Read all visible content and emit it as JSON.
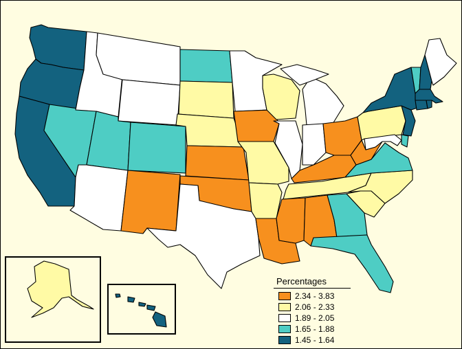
{
  "legend": {
    "title": "Percentages",
    "items": [
      {
        "label": "2.34 - 3.83",
        "color": "#f7901e"
      },
      {
        "label": "2.06 - 2.33",
        "color": "#fffaa5"
      },
      {
        "label": "1.89 - 2.05",
        "color": "#ffffff"
      },
      {
        "label": "1.65 - 1.88",
        "color": "#4ecdc4"
      },
      {
        "label": "1.45 - 1.64",
        "color": "#13627f"
      }
    ]
  },
  "colors": {
    "background": "#fffde1",
    "border": "#000000"
  },
  "states": {
    "WA": "1.45 - 1.64",
    "OR": "1.45 - 1.64",
    "CA": "1.45 - 1.64",
    "NV": "1.65 - 1.88",
    "ID": "1.89 - 2.05",
    "MT": "1.89 - 2.05",
    "WY": "1.89 - 2.05",
    "UT": "1.65 - 1.88",
    "AZ": "1.89 - 2.05",
    "CO": "1.65 - 1.88",
    "NM": "2.34 - 3.83",
    "ND": "1.65 - 1.88",
    "SD": "2.06 - 2.33",
    "NE": "2.06 - 2.33",
    "KS": "2.34 - 3.83",
    "OK": "2.34 - 3.83",
    "TX": "1.89 - 2.05",
    "MN": "1.89 - 2.05",
    "IA": "2.34 - 3.83",
    "MO": "2.06 - 2.33",
    "AR": "2.06 - 2.33",
    "LA": "2.34 - 3.83",
    "WI": "2.06 - 2.33",
    "IL": "1.89 - 2.05",
    "MI": "1.89 - 2.05",
    "IN": "1.89 - 2.05",
    "OH": "2.34 - 3.83",
    "KY": "2.34 - 3.83",
    "TN": "2.06 - 2.33",
    "MS": "2.34 - 3.83",
    "AL": "2.34 - 3.83",
    "GA": "1.65 - 1.88",
    "FL": "1.65 - 1.88",
    "SC": "2.06 - 2.33",
    "NC": "2.06 - 2.33",
    "VA": "1.65 - 1.88",
    "WV": "2.34 - 3.83",
    "PA": "2.06 - 2.33",
    "NY": "1.45 - 1.64",
    "VT": "1.65 - 1.88",
    "NH": "1.45 - 1.64",
    "ME": "1.89 - 2.05",
    "MA": "1.45 - 1.64",
    "CT": "1.45 - 1.64",
    "RI": "1.45 - 1.64",
    "NJ": "1.45 - 1.64",
    "DE": "1.65 - 1.88",
    "MD": "1.89 - 2.05",
    "AK": "2.06 - 2.33",
    "HI": "1.45 - 1.64"
  }
}
